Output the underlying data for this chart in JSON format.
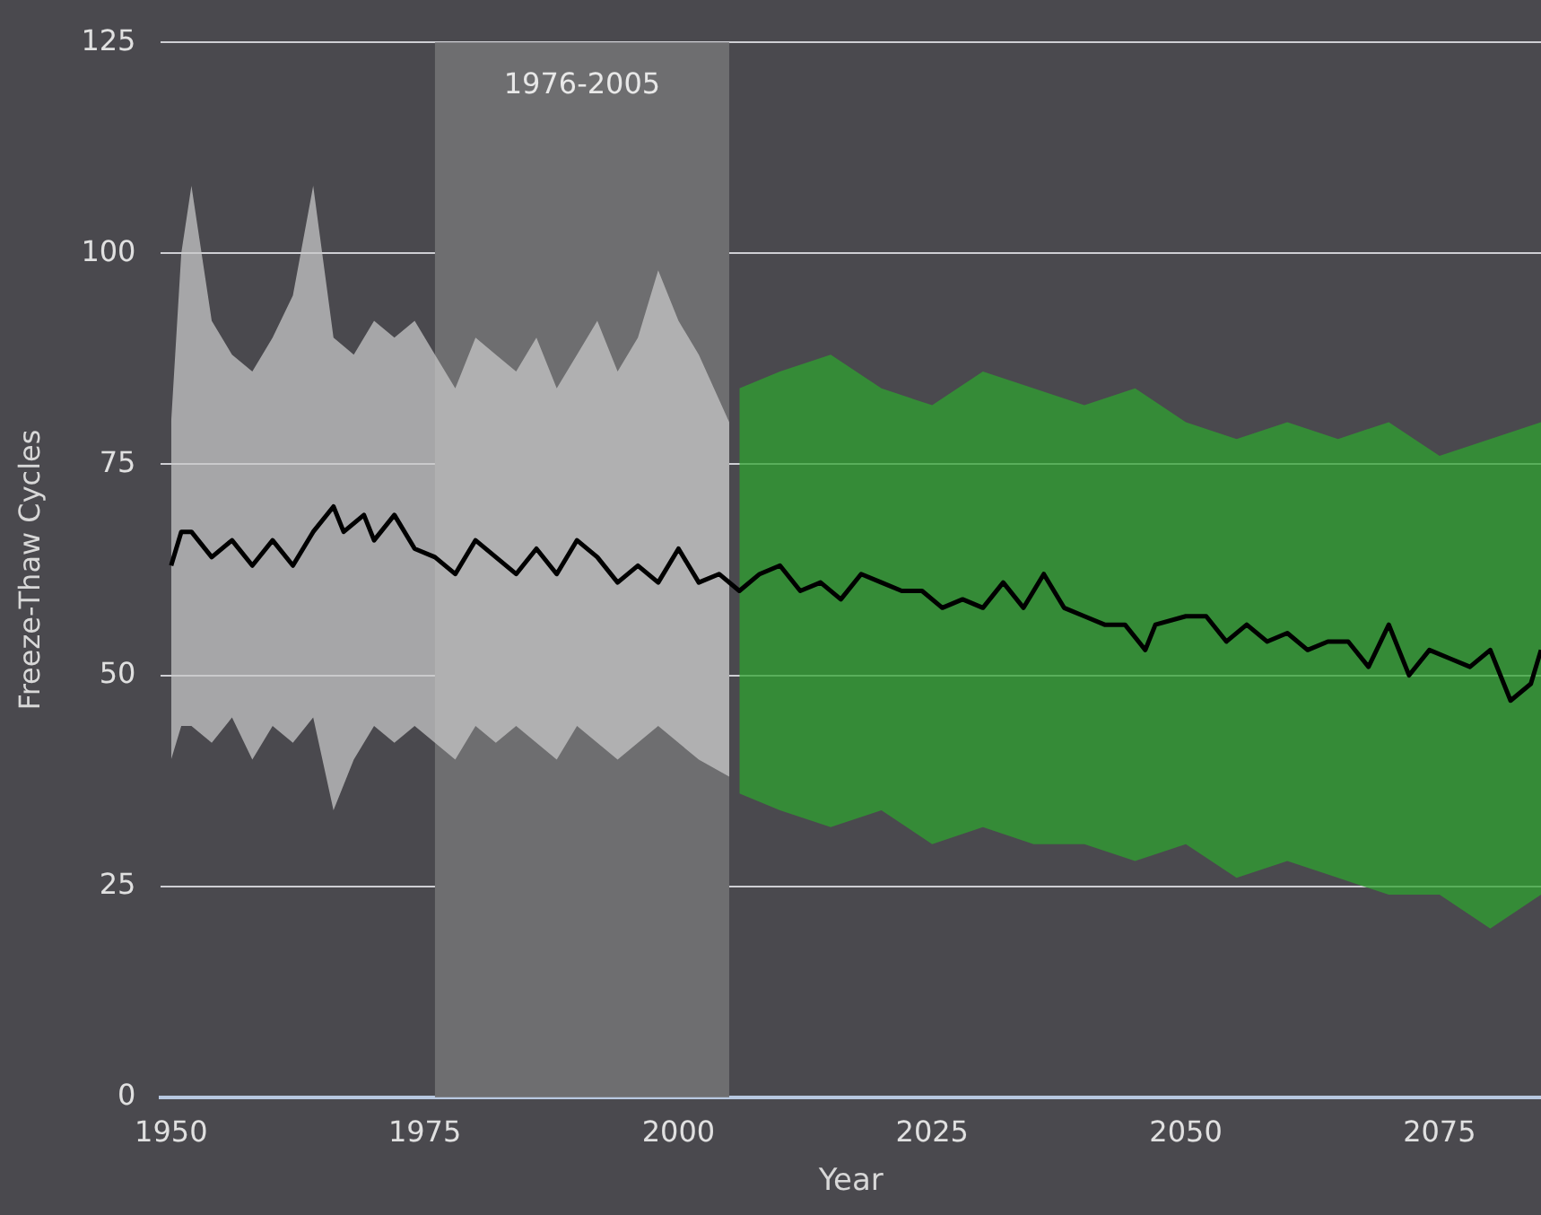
{
  "chart_data": {
    "type": "line",
    "xlabel": "Year",
    "ylabel": "Freeze-Thaw Cycles",
    "xlim": [
      1949,
      2085
    ],
    "xticks": [
      1950,
      1975,
      2000,
      2025,
      2050,
      2075
    ],
    "ylim": [
      0,
      125
    ],
    "yticks": [
      0,
      25,
      50,
      75,
      100,
      125
    ],
    "grid": "y",
    "legend": false,
    "marker": "none",
    "line_style": "solid",
    "bands": [
      {
        "axis": "x",
        "from": 1976,
        "to": 2005,
        "label": "1976-2005",
        "color": "#6e6e70"
      }
    ],
    "series": [
      {
        "color": "#c8c8c8",
        "x": [
          1950,
          1951,
          1952,
          1954,
          1956,
          1958,
          1960,
          1962,
          1964,
          1966,
          1968,
          1970,
          1972,
          1974,
          1976,
          1978,
          1980,
          1982,
          1984,
          1986,
          1988,
          1990,
          1992,
          1994,
          1996,
          1998,
          2000,
          2002,
          2005
        ],
        "values": [
          null,
          null,
          null,
          null,
          null,
          null,
          null,
          null,
          null,
          null,
          null,
          null,
          null,
          null,
          null,
          null,
          null,
          null,
          null,
          null,
          null,
          null,
          null,
          null,
          null,
          null,
          null,
          null,
          null
        ],
        "lower": [
          40,
          44,
          44,
          42,
          45,
          40,
          44,
          42,
          45,
          34,
          40,
          44,
          42,
          44,
          42,
          40,
          44,
          42,
          44,
          42,
          40,
          44,
          42,
          40,
          42,
          44,
          42,
          40,
          38
        ],
        "upper": [
          80,
          100,
          108,
          92,
          88,
          86,
          90,
          95,
          108,
          90,
          88,
          92,
          90,
          92,
          88,
          84,
          90,
          88,
          86,
          90,
          84,
          88,
          92,
          86,
          90,
          98,
          92,
          88,
          80
        ]
      },
      {
        "color": "#2ea32e",
        "x": [
          2006,
          2010,
          2015,
          2020,
          2025,
          2030,
          2035,
          2040,
          2045,
          2050,
          2055,
          2060,
          2065,
          2070,
          2075,
          2080,
          2085
        ],
        "values": [
          null,
          null,
          null,
          null,
          null,
          null,
          null,
          null,
          null,
          null,
          null,
          null,
          null,
          null,
          null,
          null,
          null
        ],
        "lower": [
          36,
          34,
          32,
          34,
          30,
          32,
          30,
          30,
          28,
          30,
          26,
          28,
          26,
          24,
          24,
          20,
          24
        ],
        "upper": [
          84,
          86,
          88,
          84,
          82,
          86,
          84,
          82,
          84,
          80,
          78,
          80,
          78,
          80,
          76,
          78,
          80
        ]
      },
      {
        "color": "#000000",
        "x": [
          1950,
          1951,
          1952,
          1954,
          1956,
          1958,
          1960,
          1962,
          1964,
          1966,
          1967,
          1969,
          1970,
          1972,
          1974,
          1976,
          1978,
          1980,
          1982,
          1984,
          1986,
          1988,
          1990,
          1992,
          1994,
          1996,
          1998,
          2000,
          2002,
          2004,
          2006,
          2008,
          2010,
          2012,
          2014,
          2016,
          2018,
          2020,
          2022,
          2024,
          2026,
          2028,
          2030,
          2032,
          2034,
          2036,
          2038,
          2040,
          2042,
          2044,
          2046,
          2047,
          2050,
          2052,
          2054,
          2056,
          2058,
          2060,
          2062,
          2064,
          2066,
          2068,
          2070,
          2072,
          2074,
          2076,
          2078,
          2080,
          2082,
          2084,
          2085
        ],
        "values": [
          63,
          67,
          67,
          64,
          66,
          63,
          66,
          63,
          67,
          70,
          67,
          69,
          66,
          69,
          65,
          64,
          62,
          66,
          64,
          62,
          65,
          62,
          66,
          64,
          61,
          63,
          61,
          65,
          61,
          62,
          60,
          62,
          63,
          60,
          61,
          59,
          62,
          61,
          60,
          60,
          58,
          59,
          58,
          61,
          58,
          62,
          58,
          57,
          56,
          56,
          53,
          56,
          57,
          57,
          54,
          56,
          54,
          55,
          53,
          54,
          54,
          51,
          56,
          50,
          53,
          52,
          51,
          53,
          47,
          49,
          53
        ]
      }
    ]
  }
}
